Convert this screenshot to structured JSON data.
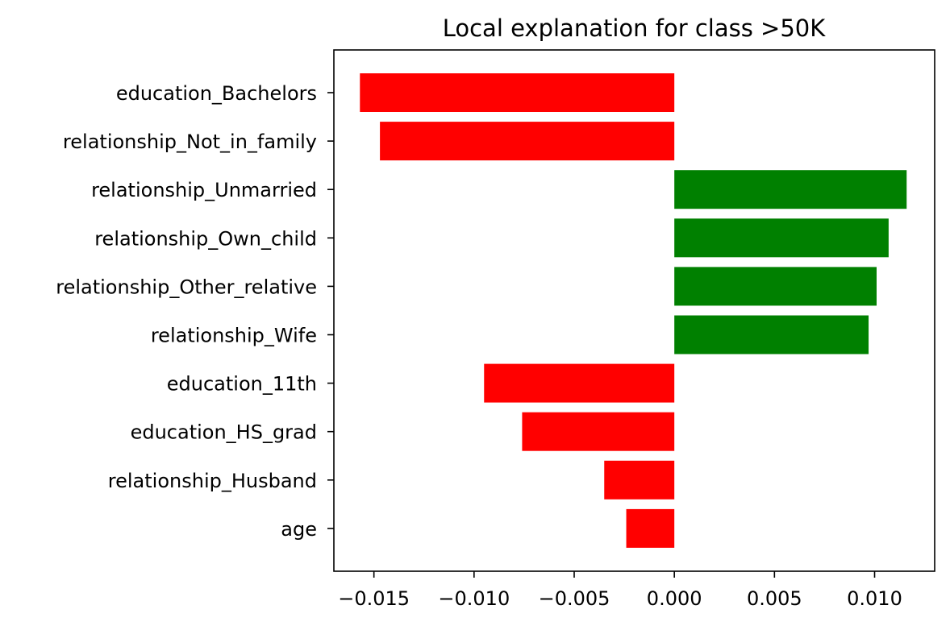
{
  "chart_data": {
    "type": "bar",
    "orientation": "horizontal",
    "title": "Local explanation for class >50K",
    "xlabel": "",
    "ylabel": "",
    "xlim": [
      -0.017,
      0.013
    ],
    "categories": [
      "education_Bachelors",
      "relationship_Not_in_family",
      "relationship_Unmarried",
      "relationship_Own_child",
      "relationship_Other_relative",
      "relationship_Wife",
      "education_11th",
      "education_HS_grad",
      "relationship_Husband",
      "age"
    ],
    "values": [
      -0.0157,
      -0.0147,
      0.0116,
      0.0107,
      0.0101,
      0.0097,
      -0.0095,
      -0.0076,
      -0.0035,
      -0.0024
    ],
    "x_ticks": [
      -0.015,
      -0.01,
      -0.005,
      0.0,
      0.005,
      0.01
    ],
    "x_tick_labels": [
      "−0.015",
      "−0.010",
      "−0.005",
      "0.000",
      "0.005",
      "0.010"
    ],
    "colors": {
      "positive": "#008000",
      "negative": "#ff0000"
    },
    "grid": false,
    "legend": "none"
  }
}
